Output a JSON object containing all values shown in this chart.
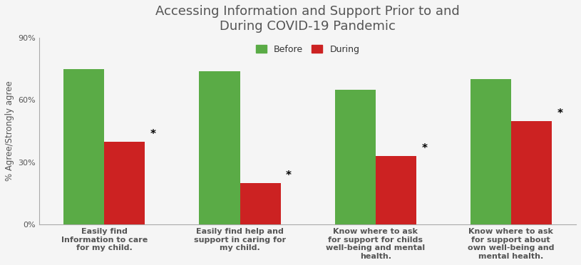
{
  "title": "Accessing Information and Support Prior to and\nDuring COVID-19 Pandemic",
  "ylabel": "% Agree/Strongly agree",
  "categories": [
    "Easily find\nInformation to care\nfor my child.",
    "Easily find help and\nsupport in caring for\nmy child.",
    "Know where to ask\nfor support for childs\nwell-being and mental\nhealth.",
    "Know where to ask\nfor support about\nown well-being and\nmental health."
  ],
  "before_values": [
    75,
    74,
    65,
    70
  ],
  "during_values": [
    40,
    20,
    33,
    50
  ],
  "before_color": "#5aab46",
  "during_color": "#cc2222",
  "bar_width": 0.3,
  "ylim": [
    0,
    90
  ],
  "yticks": [
    0,
    30,
    60,
    90
  ],
  "ytick_labels": [
    "0%",
    "30%",
    "60%",
    "90%"
  ],
  "legend_labels": [
    "Before",
    "During"
  ],
  "title_fontsize": 13,
  "ylabel_fontsize": 8.5,
  "tick_fontsize": 8,
  "xlabel_fontsize": 8,
  "background_color": "#f5f5f5"
}
